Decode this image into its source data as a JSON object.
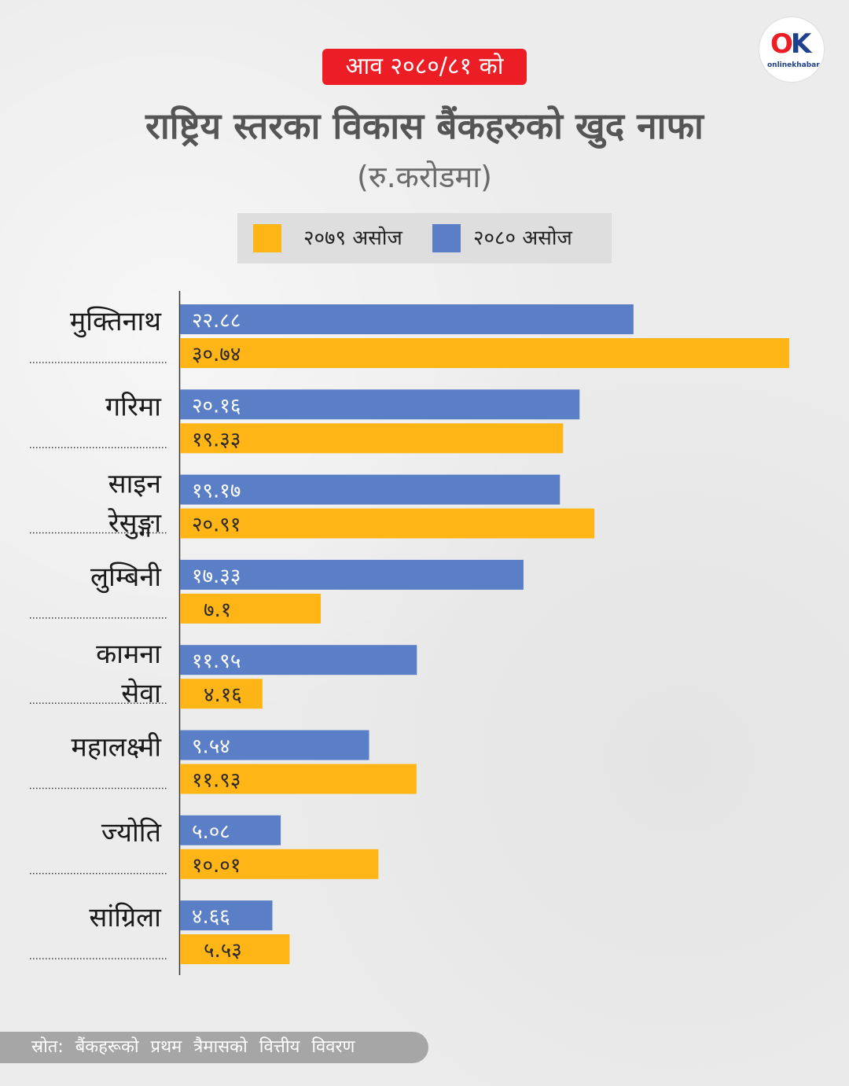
{
  "header": {
    "tag": "आव २०८०/८१ को",
    "title": "राष्ट्रिय स्तरका विकास बैंकहरुको खुद नाफा",
    "subtitle": "(रु.करोडमा)"
  },
  "logo": {
    "mark_o": "O",
    "mark_k": "K",
    "text": "onlinekhabar"
  },
  "legend": {
    "items": [
      {
        "label": "२०७९  असोज",
        "color": "#ffb515"
      },
      {
        "label": "२०८०  असोज",
        "color": "#5b7fc6"
      }
    ]
  },
  "chart_data": {
    "type": "bar",
    "orientation": "horizontal",
    "categories": [
      "मुक्तिनाथ",
      "गरिमा",
      "साइन रेसुङ्गा",
      "लुम्बिनी",
      "कामना सेवा",
      "महालक्ष्मी",
      "ज्योति",
      "सांग्रिला"
    ],
    "category_lines": [
      [
        "मुक्तिनाथ"
      ],
      [
        "गरिमा"
      ],
      [
        "साइन",
        "रेसुङ्गा"
      ],
      [
        "लुम्बिनी"
      ],
      [
        "कामना",
        "सेवा"
      ],
      [
        "महालक्ष्मी"
      ],
      [
        "ज्योति"
      ],
      [
        "सांग्रिला"
      ]
    ],
    "series": [
      {
        "name": "२०८० असोज",
        "color": "#5b7fc6",
        "values": [
          22.88,
          20.16,
          19.17,
          17.33,
          11.95,
          9.54,
          5.08,
          4.66
        ],
        "labels": [
          "२२.८८",
          "२०.१६",
          "१९.१७",
          "१७.३३",
          "११.९५",
          "९.५४",
          "५.०८",
          "४.६६"
        ]
      },
      {
        "name": "२०७९ असोज",
        "color": "#ffb515",
        "values": [
          30.74,
          19.33,
          20.91,
          7.1,
          4.16,
          11.93,
          10.01,
          5.53
        ],
        "labels": [
          "३०.७४",
          "१९.३३",
          "२०.९१",
          "७.१",
          "४.१६",
          "११.९३",
          "१०.०१",
          "५.५३"
        ]
      }
    ],
    "xlim": [
      0,
      30.74
    ]
  },
  "footer": {
    "source": "स्रोत: बैंकहरूको प्रथम त्रैमासको वित्तीय विवरण"
  }
}
